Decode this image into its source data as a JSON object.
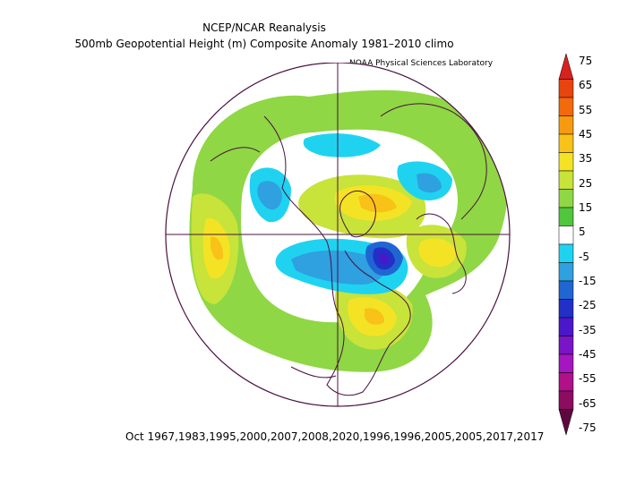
{
  "header": {
    "title": "NCEP/NCAR Reanalysis",
    "subtitle": "500mb Geopotential Height (m) Composite Anomaly 1981–2010 climo",
    "credit": "NOAA Physical Sciences Laboratory"
  },
  "footer": {
    "dates": "Oct 1967,1983,1995,2000,2007,2008,2020,1996,1996,2005,2005,2017,2017"
  },
  "colorbar": {
    "labels": [
      "75",
      "65",
      "55",
      "45",
      "35",
      "25",
      "15",
      "5",
      "-5",
      "-15",
      "-25",
      "-35",
      "-45",
      "-55",
      "-65",
      "-75"
    ],
    "colors": [
      "#d7221f",
      "#e8440e",
      "#f26a0c",
      "#f79a10",
      "#f9c218",
      "#f4e325",
      "#c8e33a",
      "#8fd744",
      "#4fc63b",
      "#ffffff",
      "#1fd3f0",
      "#2fa0e0",
      "#2066d2",
      "#2230c8",
      "#4a18c8",
      "#7a14c6",
      "#a516c0",
      "#b01088",
      "#8c0c60",
      "#5c0a3e"
    ]
  },
  "map": {
    "projection": "polar-stereographic-north",
    "land_outline_color": "#4a1040",
    "features": [
      "north-america",
      "greenland",
      "europe",
      "asia"
    ]
  }
}
